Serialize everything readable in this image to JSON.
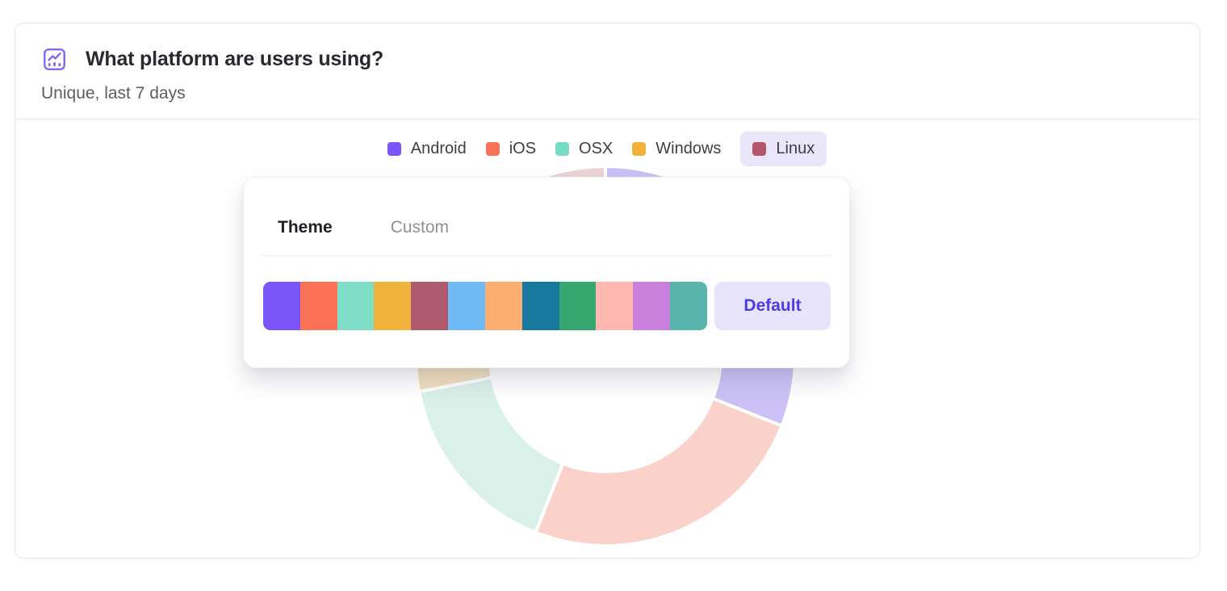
{
  "card": {
    "title": "What platform are users using?",
    "subtitle": "Unique, last 7 days",
    "icon": "line-chart-icon",
    "icon_color": "#8161FB"
  },
  "legend": {
    "highlight_bg": "#E9E6F9",
    "items": [
      {
        "label": "Android",
        "color": "#7B55FA",
        "highlighted": false
      },
      {
        "label": "iOS",
        "color": "#FB7259",
        "highlighted": false
      },
      {
        "label": "OSX",
        "color": "#75DBC4",
        "highlighted": false
      },
      {
        "label": "Windows",
        "color": "#F2B33C",
        "highlighted": false
      },
      {
        "label": "Linux",
        "color": "#B4566B",
        "highlighted": true
      }
    ]
  },
  "popover": {
    "tabs": [
      {
        "label": "Theme",
        "active": true
      },
      {
        "label": "Custom",
        "active": false
      }
    ],
    "palette": [
      "#7B55FA",
      "#FB7259",
      "#7FDEC7",
      "#F2B33C",
      "#B05A6E",
      "#70BAF5",
      "#FCAD72",
      "#17789E",
      "#35A870",
      "#FFB9B1",
      "#C980DC",
      "#58B5AB"
    ],
    "default_button": {
      "label": "Default",
      "bg": "#E8E4FB",
      "color": "#4D3BE8"
    }
  },
  "chart_data": {
    "type": "pie",
    "donut": true,
    "title": "What platform are users using?",
    "subtitle": "Unique, last 7 days",
    "legend_position": "top",
    "start_angle_deg": 0,
    "direction": "clockwise",
    "series": [
      {
        "name": "Android",
        "percent": 31,
        "color": "#7B55FA",
        "faded_color": "#CBC1F6"
      },
      {
        "name": "iOS",
        "percent": 25,
        "color": "#FB7259",
        "faded_color": "#FAD2C9"
      },
      {
        "name": "OSX",
        "percent": 16,
        "color": "#75DBC4",
        "faded_color": "#D9F1E9"
      },
      {
        "name": "Windows",
        "percent": 22,
        "color": "#F2B33C",
        "faded_color": "#F0DEBB"
      },
      {
        "name": "Linux",
        "percent": 6,
        "color": "#B4566B",
        "faded_color": "#EBD3D6"
      }
    ]
  }
}
